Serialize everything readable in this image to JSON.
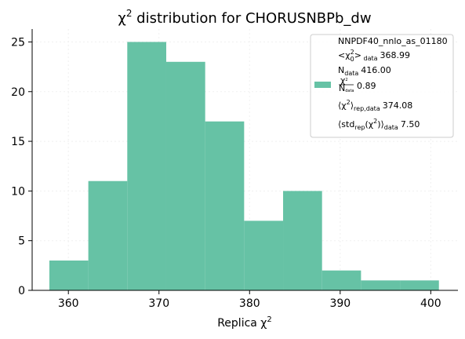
{
  "chart_data": {
    "type": "bar",
    "title": "χ",
    "title_sup": "2",
    "title_rest": " distribution for CHORUSNBPb_dw",
    "xlabel": "Replica χ",
    "xlabel_sup": "2",
    "ylabel": "",
    "bin_edges": [
      357.9,
      362.2,
      366.5,
      370.8,
      375.1,
      379.4,
      383.7,
      388.0,
      392.3,
      396.6,
      400.9
    ],
    "counts": [
      3,
      11,
      25,
      23,
      17,
      7,
      10,
      2,
      1,
      1
    ],
    "xlim": [
      356.0,
      403.0
    ],
    "ylim": [
      0,
      26.3
    ],
    "xticks": [
      360,
      370,
      380,
      390,
      400
    ],
    "yticks": [
      0,
      5,
      10,
      15,
      20,
      25
    ],
    "xtick_labels": [
      "360",
      "370",
      "380",
      "390",
      "400"
    ],
    "ytick_labels": [
      "0",
      "5",
      "10",
      "15",
      "20",
      "25"
    ],
    "bar_color": "#66c2a5",
    "grid": true,
    "legend": {
      "placement": "top-right",
      "series_name": "NNPDF40_nnlo_as_01180",
      "chi2_central_value": "368.99",
      "ndata_value": "416.00",
      "chi2_over_ndata_value": "0.89",
      "chi2_rep_value": "374.08",
      "std_rep_value": "7.50"
    }
  }
}
